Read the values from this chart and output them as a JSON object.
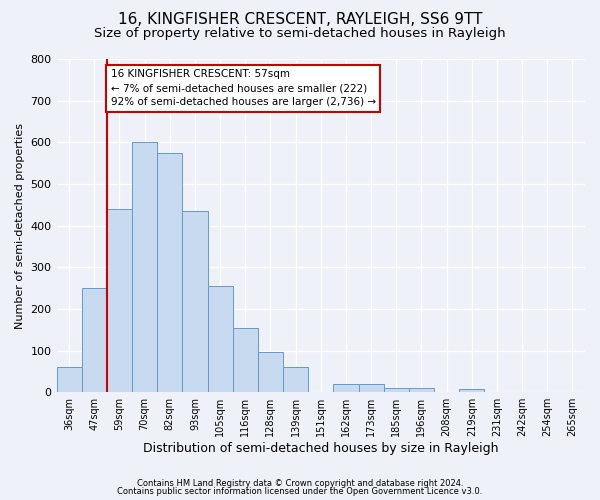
{
  "title": "16, KINGFISHER CRESCENT, RAYLEIGH, SS6 9TT",
  "subtitle": "Size of property relative to semi-detached houses in Rayleigh",
  "xlabel": "Distribution of semi-detached houses by size in Rayleigh",
  "ylabel": "Number of semi-detached properties",
  "footnote1": "Contains HM Land Registry data © Crown copyright and database right 2024.",
  "footnote2": "Contains public sector information licensed under the Open Government Licence v3.0.",
  "bar_labels": [
    "36sqm",
    "47sqm",
    "59sqm",
    "70sqm",
    "82sqm",
    "93sqm",
    "105sqm",
    "116sqm",
    "128sqm",
    "139sqm",
    "151sqm",
    "162sqm",
    "173sqm",
    "185sqm",
    "196sqm",
    "208sqm",
    "219sqm",
    "231sqm",
    "242sqm",
    "254sqm",
    "265sqm"
  ],
  "bar_values": [
    60,
    250,
    440,
    600,
    575,
    435,
    255,
    155,
    97,
    60,
    0,
    20,
    20,
    10,
    10,
    0,
    8,
    0,
    0,
    0,
    0
  ],
  "bar_color": "#c8daf0",
  "bar_edge_color": "#6699cc",
  "property_line_label": "16 KINGFISHER CRESCENT: 57sqm",
  "property_sqm": 57,
  "pct_smaller": 7,
  "num_smaller": 222,
  "pct_larger": 92,
  "num_larger": 2736,
  "annotation_box_color": "#ffffff",
  "annotation_box_edge": "#cc0000",
  "property_line_color": "#cc0000",
  "property_line_idx": 2,
  "ylim": [
    0,
    800
  ],
  "yticks": [
    0,
    100,
    200,
    300,
    400,
    500,
    600,
    700,
    800
  ],
  "background_color": "#eef2f8",
  "title_fontsize": 11,
  "subtitle_fontsize": 9.5,
  "grid_color": "#ffffff",
  "tick_fontsize": 7
}
